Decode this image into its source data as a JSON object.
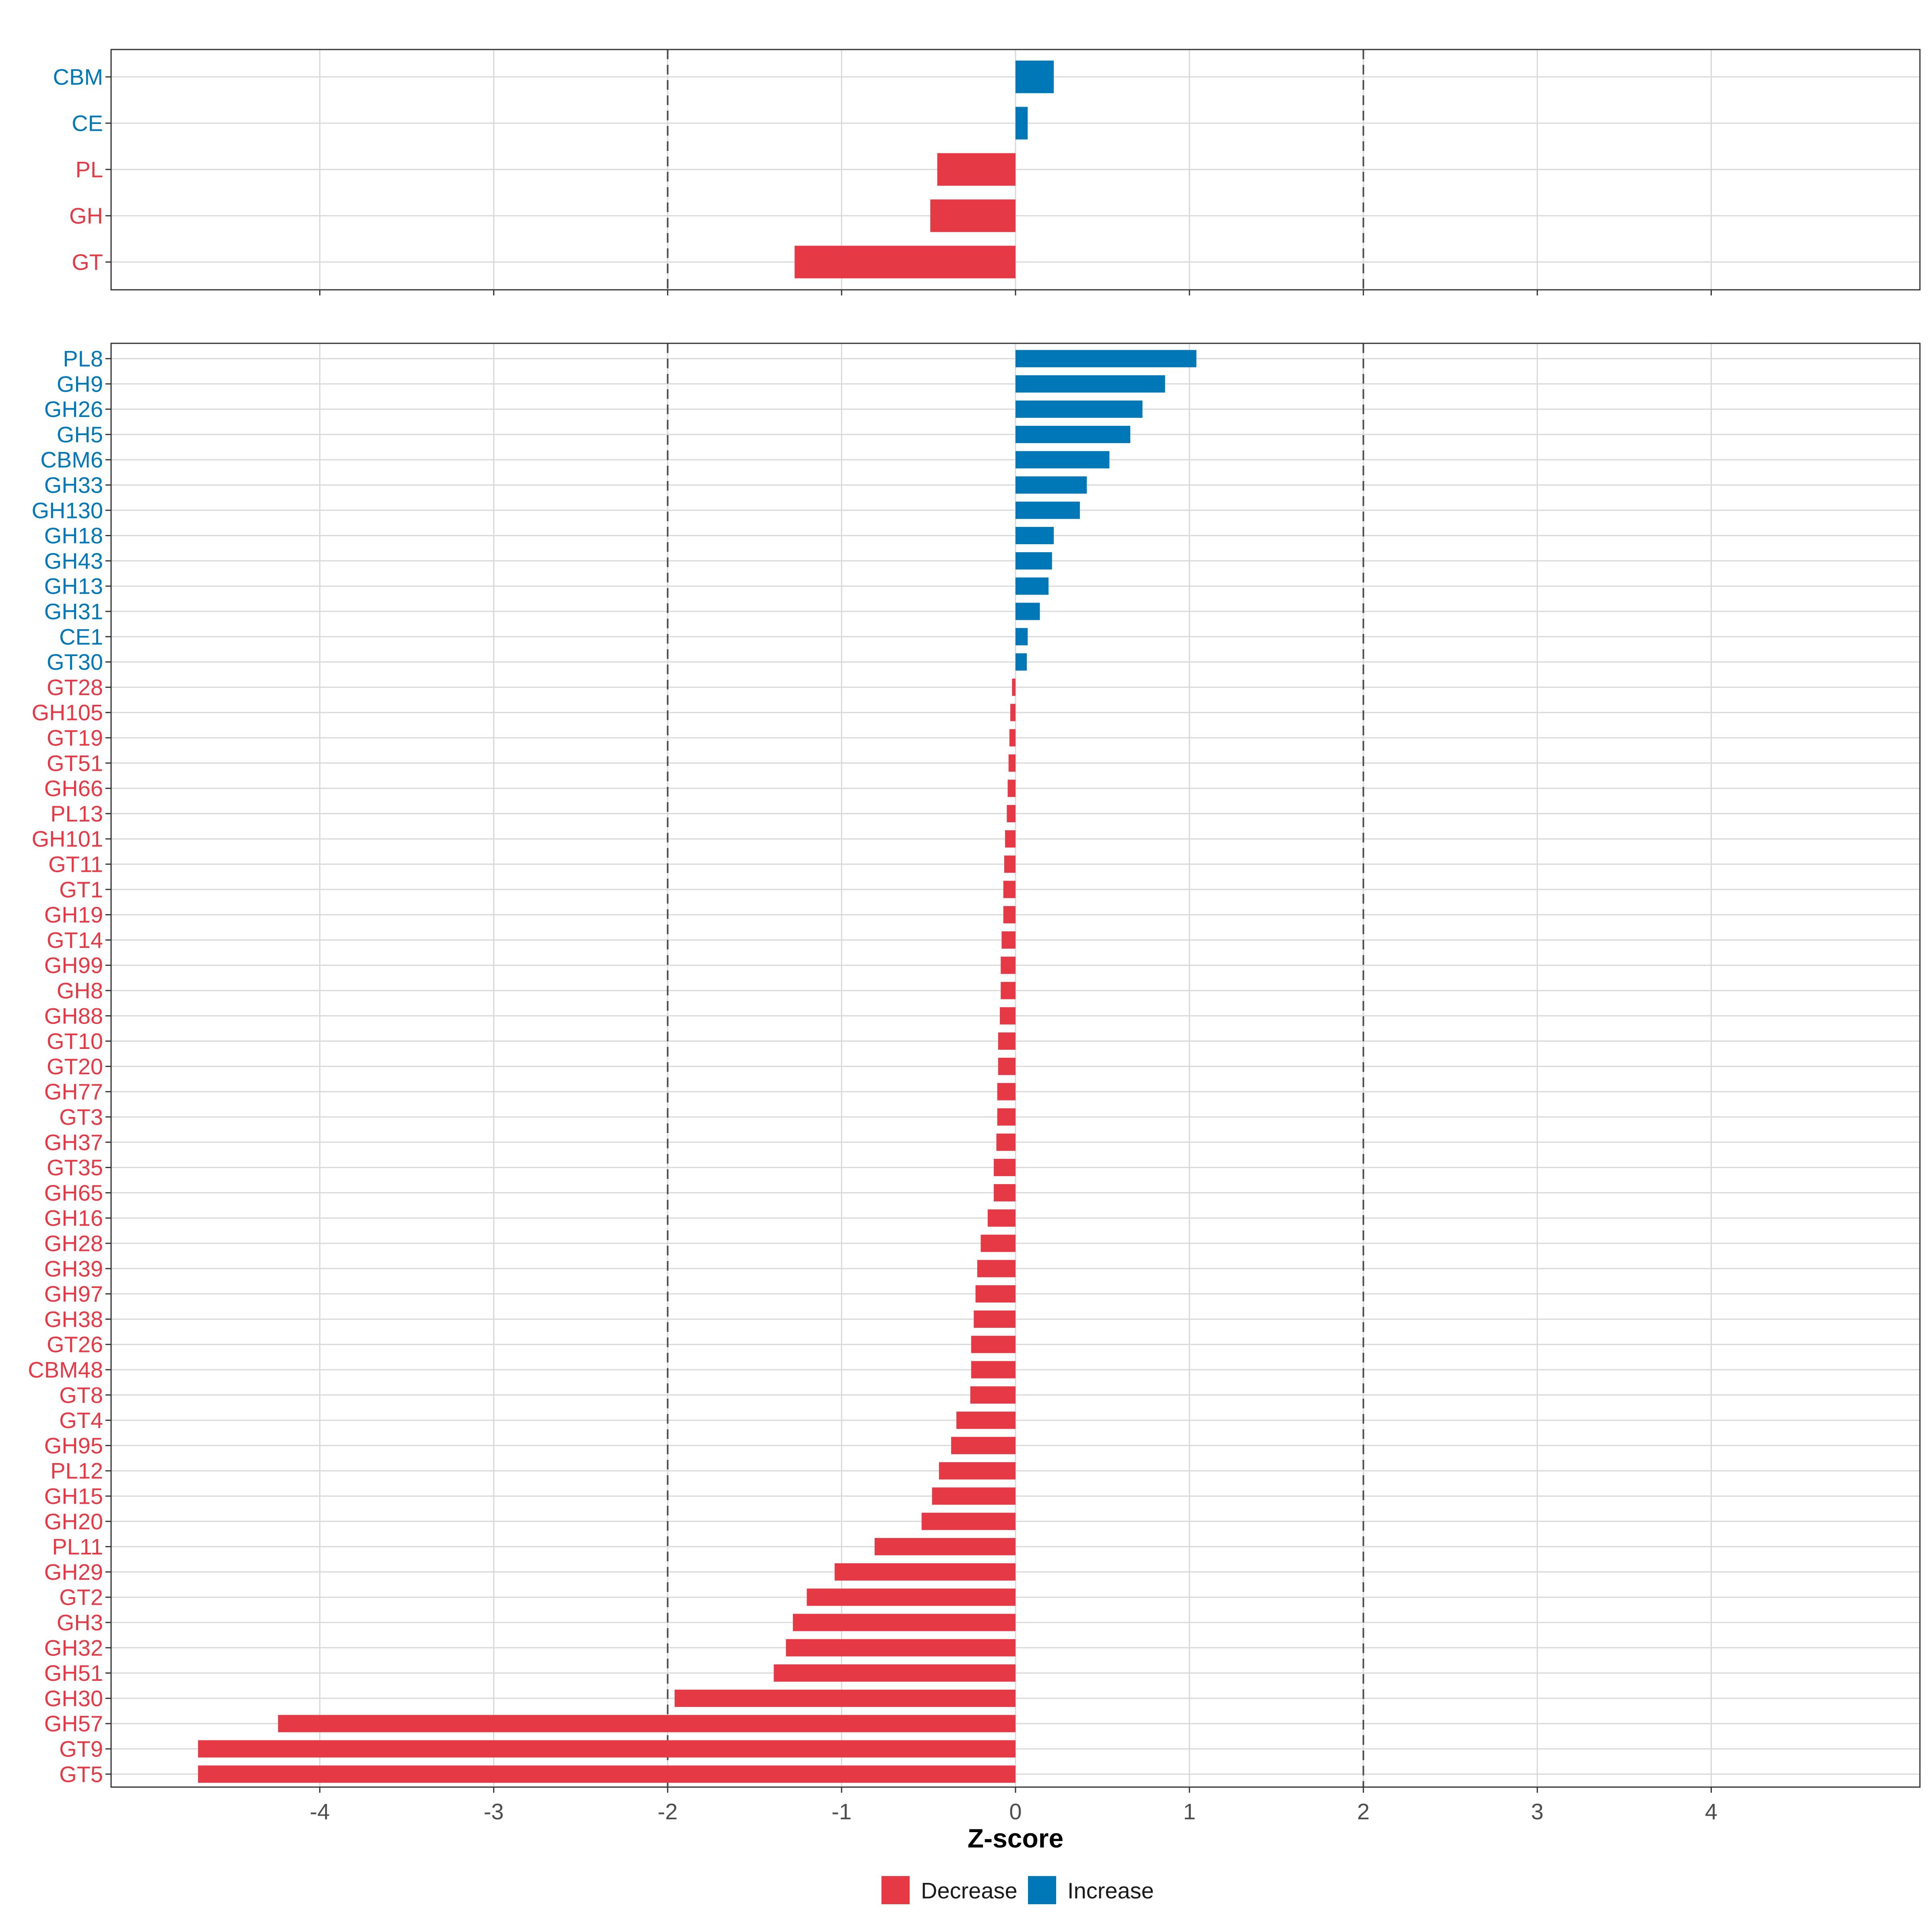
{
  "chart_data": {
    "type": "bar",
    "orientation": "horizontal",
    "xlabel": "Z-score",
    "xlim": [
      -5.2,
      5.2
    ],
    "xticks": [
      -4,
      -3,
      -2,
      -1,
      0,
      1,
      2,
      3,
      4
    ],
    "xtick_labels": [
      "-4",
      "-3",
      "-2",
      "-1",
      "0",
      "1",
      "2",
      "3",
      "4"
    ],
    "reference_lines": [
      -2,
      2
    ],
    "colors": {
      "Decrease": "#e63946",
      "Increase": "#0077b6"
    },
    "legend": {
      "placement": "bottom",
      "entries": [
        "Decrease",
        "Increase"
      ]
    },
    "panels": [
      {
        "name": "class",
        "categories": [
          "CBM",
          "CE",
          "PL",
          "GH",
          "GT"
        ],
        "values": [
          0.22,
          0.07,
          -0.45,
          -0.49,
          -1.27
        ],
        "groups": [
          "Increase",
          "Increase",
          "Decrease",
          "Decrease",
          "Decrease"
        ]
      },
      {
        "name": "family",
        "categories": [
          "PL8",
          "GH9",
          "GH26",
          "GH5",
          "CBM6",
          "GH33",
          "GH130",
          "GH18",
          "GH43",
          "GH13",
          "GH31",
          "CE1",
          "GT30",
          "GT28",
          "GH105",
          "GT19",
          "GT51",
          "GH66",
          "PL13",
          "GH101",
          "GT11",
          "GT1",
          "GH19",
          "GT14",
          "GH99",
          "GH8",
          "GH88",
          "GT10",
          "GT20",
          "GH77",
          "GT3",
          "GH37",
          "GT35",
          "GH65",
          "GH16",
          "GH28",
          "GH39",
          "GH97",
          "GH38",
          "GT26",
          "CBM48",
          "GT8",
          "GT4",
          "GH95",
          "PL12",
          "GH15",
          "GH20",
          "PL11",
          "GH29",
          "GT2",
          "GH3",
          "GH32",
          "GH51",
          "GH30",
          "GH57",
          "GT9",
          "GT5"
        ],
        "values": [
          1.04,
          0.86,
          0.73,
          0.66,
          0.54,
          0.41,
          0.37,
          0.22,
          0.21,
          0.19,
          0.14,
          0.07,
          0.065,
          -0.02,
          -0.03,
          -0.035,
          -0.04,
          -0.045,
          -0.05,
          -0.06,
          -0.065,
          -0.07,
          -0.07,
          -0.08,
          -0.085,
          -0.085,
          -0.09,
          -0.1,
          -0.1,
          -0.105,
          -0.105,
          -0.11,
          -0.125,
          -0.125,
          -0.16,
          -0.2,
          -0.22,
          -0.23,
          -0.24,
          -0.255,
          -0.255,
          -0.26,
          -0.34,
          -0.37,
          -0.44,
          -0.48,
          -0.54,
          -0.81,
          -1.04,
          -1.2,
          -1.28,
          -1.32,
          -1.39,
          -1.96,
          -4.24,
          -4.7,
          -4.7
        ],
        "groups": [
          "Increase",
          "Increase",
          "Increase",
          "Increase",
          "Increase",
          "Increase",
          "Increase",
          "Increase",
          "Increase",
          "Increase",
          "Increase",
          "Increase",
          "Increase",
          "Decrease",
          "Decrease",
          "Decrease",
          "Decrease",
          "Decrease",
          "Decrease",
          "Decrease",
          "Decrease",
          "Decrease",
          "Decrease",
          "Decrease",
          "Decrease",
          "Decrease",
          "Decrease",
          "Decrease",
          "Decrease",
          "Decrease",
          "Decrease",
          "Decrease",
          "Decrease",
          "Decrease",
          "Decrease",
          "Decrease",
          "Decrease",
          "Decrease",
          "Decrease",
          "Decrease",
          "Decrease",
          "Decrease",
          "Decrease",
          "Decrease",
          "Decrease",
          "Decrease",
          "Decrease",
          "Decrease",
          "Decrease",
          "Decrease",
          "Decrease",
          "Decrease",
          "Decrease",
          "Decrease",
          "Decrease",
          "Decrease",
          "Decrease"
        ]
      }
    ]
  }
}
